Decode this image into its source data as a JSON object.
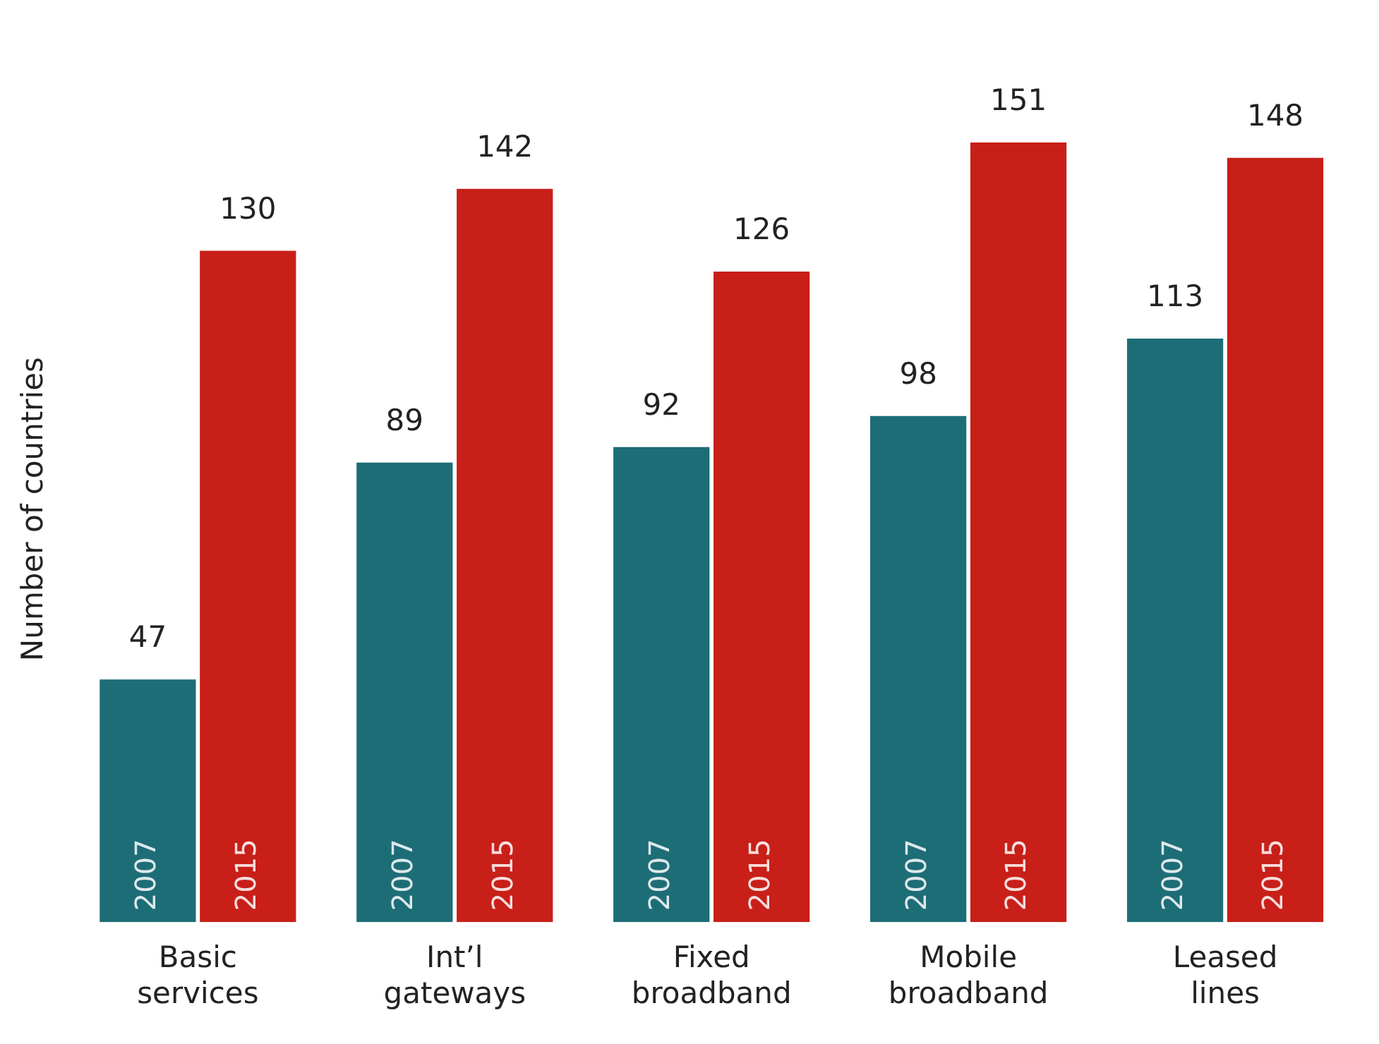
{
  "chart_data": {
    "type": "bar",
    "ylabel": "Number of countries",
    "categories": [
      "Basic services",
      "Int’l gateways",
      "Fixed broadband",
      "Mobile broadband",
      "Leased lines"
    ],
    "series": [
      {
        "name": "2007",
        "color": "#1d6d77",
        "values": [
          47,
          89,
          92,
          98,
          113
        ]
      },
      {
        "name": "2015",
        "color": "#c81f19",
        "values": [
          130,
          142,
          126,
          151,
          148
        ]
      }
    ],
    "data_labels": true,
    "grid": false,
    "legend": false
  }
}
